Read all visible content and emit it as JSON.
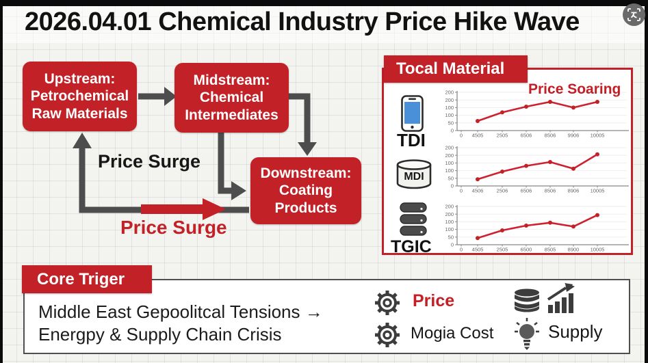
{
  "page": {
    "title": "2026.04.01 Chemical Industry Price Hike Wave"
  },
  "lens": {
    "icon": "image-search-icon"
  },
  "flowchart": {
    "upstream": {
      "lines": [
        "Upstream:",
        "Petrochemical",
        "Raw Materials"
      ]
    },
    "midstream": {
      "lines": [
        "Midstream:",
        "Chemical",
        "Intermediates"
      ]
    },
    "downstream": {
      "lines": [
        "Downstream:",
        "Coating",
        "Products"
      ]
    },
    "label_mid": "Price Surge",
    "label_bottom": "Price Surge"
  },
  "material_panel": {
    "header": "Tocal Material",
    "annotation": "Price Soaring",
    "items": [
      {
        "name": "TDI",
        "icon": "smartphone-icon"
      },
      {
        "name": "MDI",
        "icon": "drum-cylinder-icon"
      },
      {
        "name": "TGIC",
        "icon": "database-stack-icon"
      }
    ]
  },
  "chart_data": [
    {
      "type": "line",
      "series_name": "TDI",
      "x_labels": [
        "0",
        "4505",
        "2505",
        "6506",
        "8506",
        "9906",
        "10005"
      ],
      "y_tick_labels": [
        "200",
        "200",
        "100",
        "100",
        "50",
        "0"
      ],
      "values": [
        50,
        95,
        125,
        150,
        120,
        150
      ],
      "ylim": [
        0,
        200
      ],
      "grid": true,
      "legend": "none",
      "line_color": "#cf2030"
    },
    {
      "type": "line",
      "series_name": "MDI",
      "x_labels": [
        "0",
        "4506",
        "2506",
        "6506",
        "8506",
        "8906",
        "10005"
      ],
      "y_tick_labels": [
        "200",
        "200",
        "100",
        "100",
        "50",
        "0"
      ],
      "values": [
        35,
        75,
        105,
        125,
        90,
        165
      ],
      "ylim": [
        0,
        200
      ],
      "grid": true,
      "legend": "none",
      "line_color": "#cf2030"
    },
    {
      "type": "line",
      "series_name": "TGIC",
      "x_labels": [
        "0",
        "4505",
        "2505",
        "6500",
        "8505",
        "8900",
        "10005"
      ],
      "y_tick_labels": [
        "200",
        "200",
        "100",
        "100",
        "50",
        "0"
      ],
      "values": [
        35,
        75,
        100,
        115,
        95,
        155
      ],
      "ylim": [
        0,
        200
      ],
      "grid": true,
      "legend": "none",
      "line_color": "#cf2030"
    }
  ],
  "core_trigger": {
    "header": "Core Triger",
    "line1": "Middle East Gepoolitcal Tensions →",
    "line2": "Energpy & Supply Chain Crisis",
    "items": [
      {
        "icon": "gear-icon",
        "label": "Price"
      },
      {
        "icon": "gear-icon",
        "label": "Mogia Cost"
      },
      {
        "icon": "bulb-icon",
        "label": "Supply"
      }
    ],
    "extra_icons": [
      "database-icon",
      "growth-chart-icon"
    ]
  },
  "colors": {
    "red": "#c22127",
    "arrow_gray": "#4d4d4d",
    "chart_red": "#cf2030",
    "text_red": "#c41e26"
  }
}
